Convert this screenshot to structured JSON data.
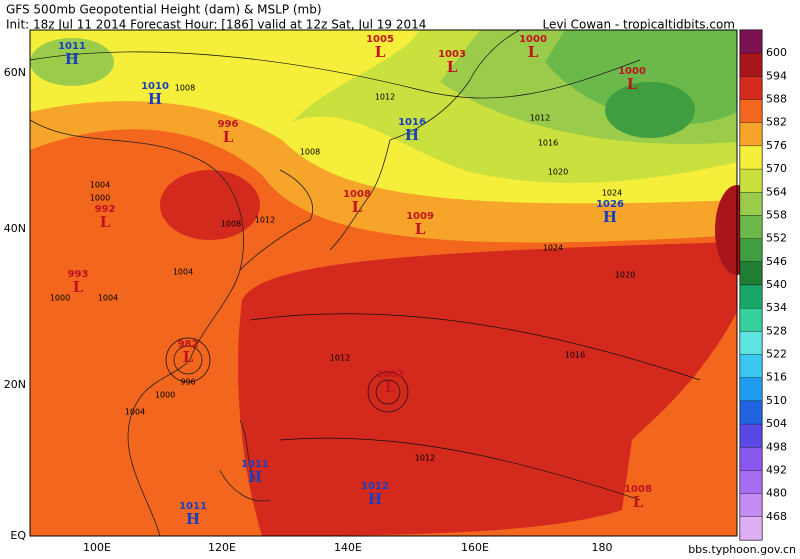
{
  "header": {
    "title": "GFS 500mb Geopotential Height (dam) & MSLP (mb)",
    "subtitle": "Init: 18z Jul 11 2014 Forecast Hour: [186] valid at 12z Sat, Jul 19 2014",
    "credit": "Levi Cowan - tropicaltidbits.com"
  },
  "colorbar": {
    "levels": [
      600,
      594,
      588,
      582,
      576,
      570,
      564,
      558,
      552,
      546,
      540,
      534,
      528,
      522,
      516,
      510,
      504,
      498,
      492,
      480,
      468
    ],
    "colors": [
      "#7b1150",
      "#a8151a",
      "#d42a1e",
      "#f2661e",
      "#f6a52a",
      "#f5ee3a",
      "#c9e03e",
      "#9acb4a",
      "#6cb94b",
      "#3f9e3f",
      "#207e34",
      "#1aa86a",
      "#36cf9e",
      "#5fe3e0",
      "#3cc6f2",
      "#1e9cf0",
      "#2162e0",
      "#5a48e4",
      "#8a58ee",
      "#a86cf0",
      "#c48cf2",
      "#e0aef4"
    ]
  },
  "latitude_labels": [
    "60N",
    "40N",
    "20N",
    "EQ"
  ],
  "longitude_labels": [
    "100E",
    "120E",
    "140E",
    "160E",
    "180"
  ],
  "pressure_centers": [
    {
      "type": "H",
      "value": 1011
    },
    {
      "type": "H",
      "value": 1010
    },
    {
      "type": "L",
      "value": 996
    },
    {
      "type": "L",
      "value": 1005
    },
    {
      "type": "L",
      "value": 1003
    },
    {
      "type": "L",
      "value": 1000
    },
    {
      "type": "L",
      "value": 1000
    },
    {
      "type": "H",
      "value": 1016
    },
    {
      "type": "L",
      "value": 1008
    },
    {
      "type": "L",
      "value": 1009
    },
    {
      "type": "H",
      "value": 1026
    },
    {
      "type": "L",
      "value": 992
    },
    {
      "type": "L",
      "value": 993
    },
    {
      "type": "L",
      "value": 982
    },
    {
      "type": "L",
      "value": 1002
    },
    {
      "type": "H",
      "value": 1011
    },
    {
      "type": "H",
      "value": 1011
    },
    {
      "type": "H",
      "value": 1012
    },
    {
      "type": "L",
      "value": 1008
    }
  ],
  "contour_labels": [
    1008,
    1012,
    1008,
    1012,
    1016,
    1020,
    1024,
    1024,
    1020,
    1016,
    1012,
    1012,
    1004,
    1000,
    1004,
    1004,
    1000,
    1000,
    996,
    1004,
    1008,
    1012
  ],
  "watermark": "bbs.typhoon.gov.cn"
}
